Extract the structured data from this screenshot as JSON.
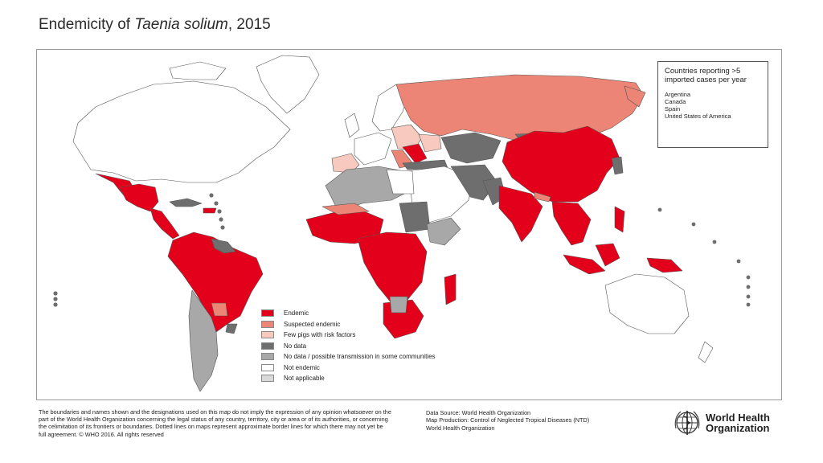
{
  "title": {
    "prefix": "Endemicity of ",
    "species": "Taenia solium",
    "suffix": ", 2015"
  },
  "imported_box": {
    "heading": "Countries reporting >5 imported cases per year",
    "countries": [
      "Argentina",
      "Canada",
      "Spain",
      "United States of America"
    ]
  },
  "legend": [
    {
      "label": "Endemic",
      "color": "#e2001a"
    },
    {
      "label": "Suspected endemic",
      "color": "#ec8575"
    },
    {
      "label": "Few pigs with risk factors",
      "color": "#f7c9bf"
    },
    {
      "label": "No data",
      "color": "#6e6e6e"
    },
    {
      "label": "No data / possible transmission in some communities",
      "color": "#a8a8a8"
    },
    {
      "label": "Not endemic",
      "color": "#ffffff"
    },
    {
      "label": "Not applicable",
      "color": "#d9d9d9"
    }
  ],
  "footer": {
    "disclaimer": "The boundaries and names shown and the designations used on this map do not imply the expression of any opinion whatsoever on the part of the World Health Organization concerning the legal status of any country, territory, city or area or of its authorities, or concerning the celimitation of its frontiers or boundaries. Dotted lines on maps represent approximate border lines for which there may not yet be full agreement. © WHO 2016. All rights reserved",
    "data_source": "Data Source: World Health Organization",
    "map_production": "Map Production: Control of Neglected Tropical Diseases (NTD)",
    "organization": "World Health Organization"
  },
  "logo": {
    "line1": "World Health",
    "line2": "Organization"
  }
}
